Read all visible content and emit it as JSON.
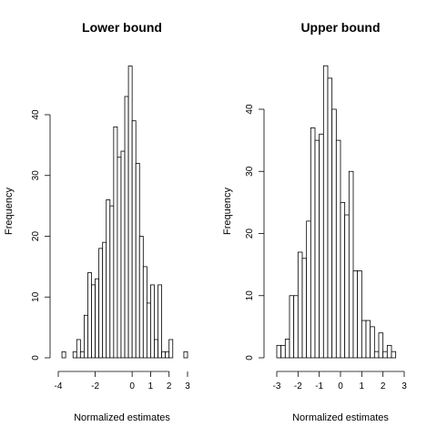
{
  "chart_data": [
    {
      "type": "histogram",
      "title": "Lower bound",
      "xlabel": "Normalized estimates",
      "ylabel": "Frequency",
      "xlim": [
        -4,
        3
      ],
      "ylim": [
        0,
        48
      ],
      "xticks": [
        -4,
        -2,
        0,
        2
      ],
      "xticks_printed": [
        "-4",
        "-2",
        "0",
        "2"
      ],
      "xticks_extra": [
        {
          "value": 1,
          "label": "1"
        },
        {
          "value": 3,
          "label": "3"
        }
      ],
      "yticks": [
        0,
        10,
        20,
        30,
        40
      ],
      "bin_width": 0.2,
      "bin_start": -3.8,
      "counts": [
        1,
        0,
        0,
        1,
        3,
        1,
        7,
        14,
        12,
        13,
        18,
        19,
        26,
        25,
        38,
        33,
        34,
        43,
        48,
        39,
        32,
        20,
        15,
        9,
        12,
        3,
        12,
        1,
        1,
        3,
        0,
        0,
        0,
        1
      ],
      "grid": false,
      "legend": "none"
    },
    {
      "type": "histogram",
      "title": "Upper bound",
      "xlabel": "Normalized estimates",
      "ylabel": "Frequency",
      "xlim": [
        -3,
        3
      ],
      "ylim": [
        0,
        47
      ],
      "xticks": [
        -3,
        -2,
        -1,
        0,
        1,
        2,
        3
      ],
      "yticks": [
        0,
        10,
        20,
        30,
        40
      ],
      "bin_width": 0.2,
      "bin_start": -3.0,
      "counts": [
        2,
        2,
        3,
        10,
        10,
        17,
        16,
        22,
        37,
        35,
        36,
        47,
        45,
        40,
        35,
        25,
        23,
        30,
        14,
        14,
        6,
        6,
        5,
        1,
        4,
        1,
        2,
        1
      ],
      "grid": false,
      "legend": "none"
    }
  ]
}
